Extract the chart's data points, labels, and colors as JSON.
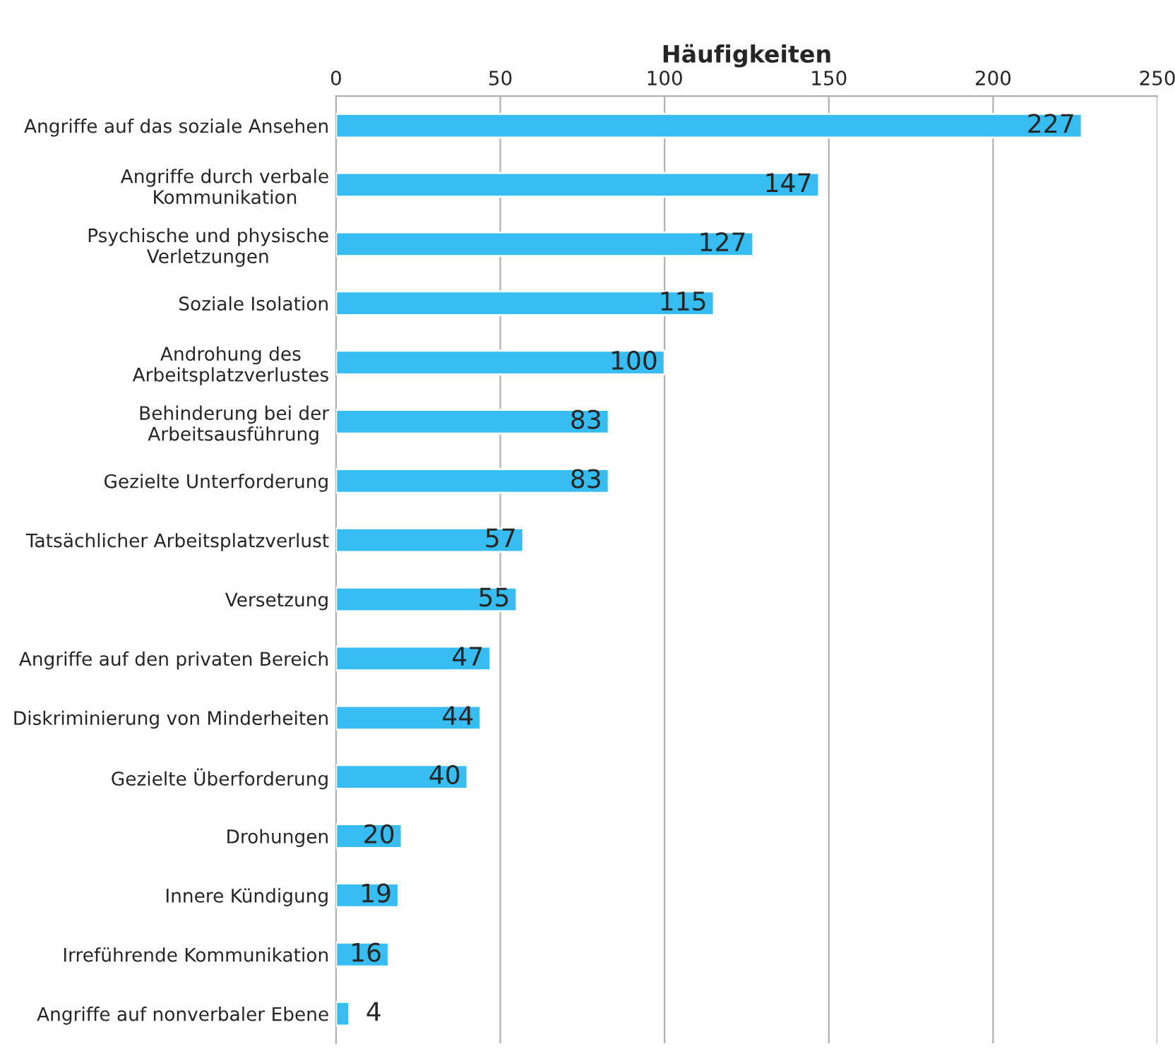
{
  "chart_data": {
    "type": "bar",
    "orientation": "horizontal",
    "xlabel": "Häufigkeiten",
    "categories": [
      "Angriffe auf das soziale Ansehen",
      "Angriffe durch verbale\nKommunikation",
      "Psychische und physische\nVerletzungen",
      "Soziale Isolation",
      "Androhung des\nArbeitsplatzverlustes",
      "Behinderung bei der\nArbeitsausführung",
      "Gezielte Unterforderung",
      "Tatsächlicher Arbeitsplatzverlust",
      "Versetzung",
      "Angriffe auf den privaten Bereich",
      "Diskriminierung von Minderheiten",
      "Gezielte Überforderung",
      "Drohungen",
      "Innere Kündigung",
      "Irreführende Kommunikation",
      "Angriffe auf nonverbaler Ebene"
    ],
    "values": [
      227,
      147,
      127,
      115,
      100,
      83,
      83,
      57,
      55,
      47,
      44,
      40,
      20,
      19,
      16,
      4
    ],
    "color": "#38bdf2",
    "xlim": [
      0,
      250
    ],
    "xticks": [
      0,
      50,
      100,
      150,
      200,
      250
    ],
    "grid": "x",
    "data_labels": true
  }
}
